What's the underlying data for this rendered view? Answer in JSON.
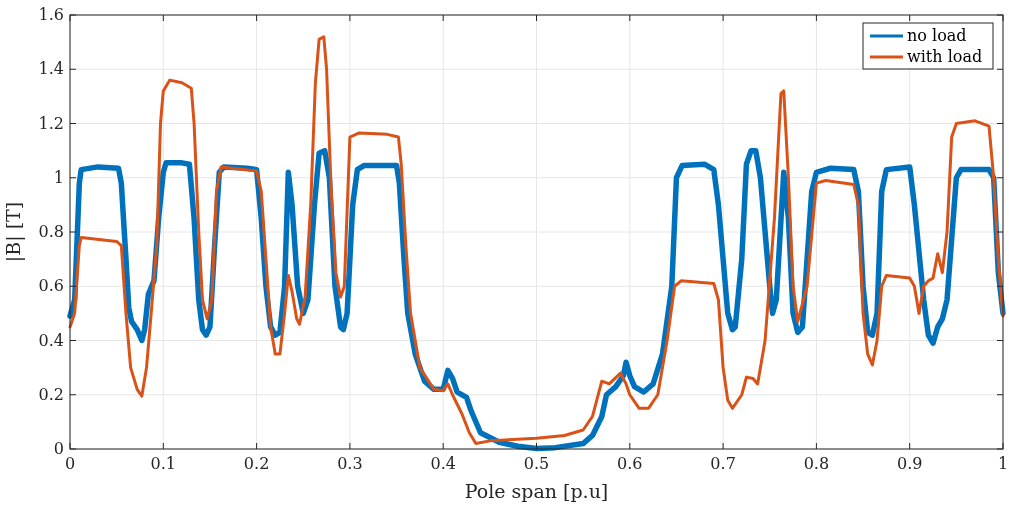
{
  "chart_data": {
    "type": "line",
    "xlabel": "Pole span [p.u]",
    "ylabel": "|B| [T]",
    "xlim": [
      0,
      1
    ],
    "ylim": [
      0,
      1.6
    ],
    "xticks": [
      0,
      0.1,
      0.2,
      0.3,
      0.4,
      0.5,
      0.6,
      0.7,
      0.8,
      0.9,
      1
    ],
    "yticks": [
      0,
      0.2,
      0.4,
      0.6,
      0.8,
      1,
      1.2,
      1.4,
      1.6
    ],
    "grid": true,
    "legend": "top right",
    "line_style": "solid",
    "marker": "none",
    "series": [
      {
        "name": "no load",
        "color": "#0072bd",
        "x": [
          0,
          0.005,
          0.01,
          0.012,
          0.03,
          0.052,
          0.055,
          0.06,
          0.063,
          0.066,
          0.072,
          0.077,
          0.08,
          0.084,
          0.09,
          0.095,
          0.1,
          0.103,
          0.12,
          0.128,
          0.133,
          0.138,
          0.142,
          0.146,
          0.15,
          0.155,
          0.16,
          0.165,
          0.19,
          0.2,
          0.205,
          0.21,
          0.215,
          0.22,
          0.225,
          0.23,
          0.234,
          0.238,
          0.244,
          0.25,
          0.255,
          0.262,
          0.267,
          0.273,
          0.278,
          0.284,
          0.29,
          0.293,
          0.297,
          0.303,
          0.308,
          0.315,
          0.35,
          0.353,
          0.358,
          0.362,
          0.37,
          0.38,
          0.39,
          0.4,
          0.405,
          0.41,
          0.415,
          0.425,
          0.43,
          0.44,
          0.46,
          0.48,
          0.5,
          0.52,
          0.55,
          0.56,
          0.57,
          0.575,
          0.585,
          0.593,
          0.596,
          0.6,
          0.605,
          0.615,
          0.625,
          0.635,
          0.645,
          0.65,
          0.656,
          0.68,
          0.69,
          0.695,
          0.705,
          0.71,
          0.713,
          0.72,
          0.725,
          0.73,
          0.735,
          0.74,
          0.75,
          0.753,
          0.757,
          0.765,
          0.77,
          0.775,
          0.78,
          0.785,
          0.795,
          0.8,
          0.815,
          0.84,
          0.845,
          0.85,
          0.855,
          0.86,
          0.865,
          0.87,
          0.875,
          0.9,
          0.905,
          0.915,
          0.92,
          0.925,
          0.93,
          0.935,
          0.94,
          0.95,
          0.955,
          0.985,
          0.99,
          0.995,
          1
        ],
        "values": [
          0.49,
          0.55,
          0.98,
          1.03,
          1.04,
          1.035,
          0.98,
          0.7,
          0.52,
          0.47,
          0.44,
          0.4,
          0.44,
          0.57,
          0.62,
          0.85,
          1.02,
          1.055,
          1.055,
          1.05,
          0.85,
          0.55,
          0.44,
          0.42,
          0.45,
          0.75,
          1.02,
          1.04,
          1.035,
          1.03,
          0.85,
          0.6,
          0.45,
          0.42,
          0.43,
          0.6,
          1.02,
          0.9,
          0.6,
          0.5,
          0.55,
          0.9,
          1.09,
          1.1,
          1.0,
          0.6,
          0.45,
          0.44,
          0.5,
          0.9,
          1.03,
          1.045,
          1.045,
          0.98,
          0.7,
          0.5,
          0.35,
          0.25,
          0.22,
          0.22,
          0.29,
          0.26,
          0.21,
          0.19,
          0.14,
          0.06,
          0.025,
          0.01,
          0.002,
          0.005,
          0.02,
          0.05,
          0.12,
          0.2,
          0.23,
          0.27,
          0.32,
          0.27,
          0.23,
          0.21,
          0.24,
          0.35,
          0.6,
          1.0,
          1.045,
          1.05,
          1.03,
          0.9,
          0.5,
          0.44,
          0.45,
          0.7,
          1.05,
          1.1,
          1.1,
          1.0,
          0.6,
          0.5,
          0.55,
          1.02,
          0.85,
          0.5,
          0.43,
          0.45,
          0.95,
          1.02,
          1.035,
          1.03,
          0.95,
          0.6,
          0.43,
          0.42,
          0.5,
          0.95,
          1.03,
          1.04,
          0.9,
          0.55,
          0.42,
          0.39,
          0.45,
          0.48,
          0.55,
          1.0,
          1.03,
          1.03,
          1.0,
          0.65,
          0.5
        ]
      },
      {
        "name": "with load",
        "color": "#d95319",
        "x": [
          0,
          0.005,
          0.01,
          0.012,
          0.05,
          0.055,
          0.06,
          0.065,
          0.072,
          0.077,
          0.082,
          0.087,
          0.093,
          0.097,
          0.1,
          0.107,
          0.12,
          0.13,
          0.133,
          0.138,
          0.142,
          0.147,
          0.152,
          0.157,
          0.162,
          0.2,
          0.205,
          0.21,
          0.215,
          0.22,
          0.225,
          0.23,
          0.234,
          0.238,
          0.243,
          0.246,
          0.252,
          0.258,
          0.263,
          0.267,
          0.272,
          0.275,
          0.28,
          0.285,
          0.29,
          0.294,
          0.3,
          0.31,
          0.34,
          0.352,
          0.355,
          0.36,
          0.365,
          0.375,
          0.39,
          0.4,
          0.405,
          0.41,
          0.42,
          0.428,
          0.435,
          0.45,
          0.5,
          0.53,
          0.55,
          0.56,
          0.57,
          0.578,
          0.59,
          0.596,
          0.6,
          0.61,
          0.62,
          0.63,
          0.64,
          0.648,
          0.655,
          0.69,
          0.695,
          0.7,
          0.705,
          0.71,
          0.72,
          0.725,
          0.732,
          0.737,
          0.745,
          0.755,
          0.762,
          0.765,
          0.77,
          0.775,
          0.78,
          0.79,
          0.8,
          0.81,
          0.84,
          0.845,
          0.85,
          0.855,
          0.86,
          0.865,
          0.87,
          0.875,
          0.9,
          0.905,
          0.91,
          0.915,
          0.92,
          0.925,
          0.93,
          0.935,
          0.94,
          0.945,
          0.95,
          0.97,
          0.985,
          0.99,
          0.995,
          1
        ],
        "values": [
          0.45,
          0.5,
          0.75,
          0.78,
          0.765,
          0.75,
          0.5,
          0.3,
          0.22,
          0.195,
          0.3,
          0.5,
          0.75,
          1.2,
          1.32,
          1.36,
          1.35,
          1.33,
          1.2,
          0.8,
          0.55,
          0.48,
          0.55,
          0.95,
          1.04,
          1.025,
          0.95,
          0.7,
          0.45,
          0.35,
          0.35,
          0.5,
          0.64,
          0.58,
          0.48,
          0.46,
          0.56,
          0.9,
          1.35,
          1.51,
          1.52,
          1.4,
          0.95,
          0.65,
          0.56,
          0.6,
          1.15,
          1.165,
          1.16,
          1.15,
          1.05,
          0.75,
          0.5,
          0.3,
          0.22,
          0.215,
          0.24,
          0.2,
          0.13,
          0.06,
          0.02,
          0.03,
          0.04,
          0.05,
          0.07,
          0.12,
          0.25,
          0.24,
          0.28,
          0.24,
          0.2,
          0.15,
          0.15,
          0.2,
          0.4,
          0.6,
          0.62,
          0.61,
          0.55,
          0.3,
          0.18,
          0.15,
          0.2,
          0.265,
          0.26,
          0.24,
          0.4,
          0.85,
          1.31,
          1.32,
          1.0,
          0.6,
          0.47,
          0.6,
          0.98,
          0.99,
          0.975,
          0.9,
          0.5,
          0.35,
          0.31,
          0.4,
          0.6,
          0.64,
          0.63,
          0.6,
          0.5,
          0.6,
          0.62,
          0.63,
          0.72,
          0.65,
          0.8,
          1.15,
          1.2,
          1.21,
          1.19,
          1.0,
          0.7,
          0.49
        ]
      }
    ]
  }
}
